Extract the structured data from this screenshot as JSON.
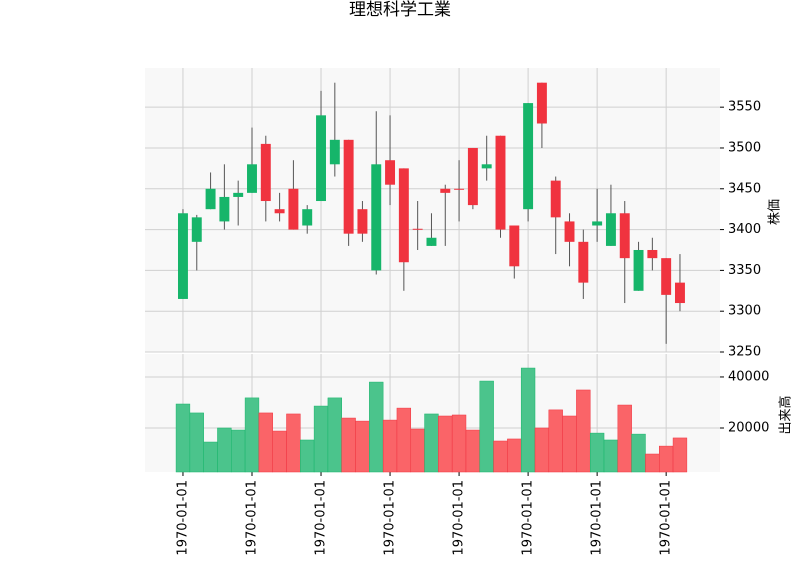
{
  "chart_data": {
    "type": "candlestick",
    "title": "理想科学工業",
    "ylabel": "株価",
    "volume_ylabel": "出来高",
    "x": [
      0,
      1,
      2,
      3,
      4,
      5,
      6,
      7,
      8,
      9,
      10,
      11,
      12,
      13,
      14,
      15,
      16,
      17,
      18,
      19,
      20,
      21,
      22,
      23,
      24,
      25,
      26,
      27,
      28,
      29,
      30,
      31,
      32,
      33,
      34,
      35,
      36
    ],
    "xlim": [
      -2.75,
      38.9
    ],
    "xticks": [
      {
        "value": 0,
        "label": "1970-01-01"
      },
      {
        "value": 5,
        "label": "1970-01-01"
      },
      {
        "value": 10,
        "label": "1970-01-01"
      },
      {
        "value": 15,
        "label": "1970-01-01"
      },
      {
        "value": 20,
        "label": "1970-01-01"
      },
      {
        "value": 25,
        "label": "1970-01-01"
      },
      {
        "value": 30,
        "label": "1970-01-01"
      },
      {
        "value": 35,
        "label": "1970-01-01"
      }
    ],
    "open": [
      3315,
      3385,
      3425,
      3410,
      3440,
      3445,
      3505,
      3425,
      3450,
      3405,
      3435,
      3480,
      3510,
      3425,
      3350,
      3485,
      3475,
      3401,
      3380,
      3450,
      3450,
      3500,
      3475,
      3515,
      3405,
      3425,
      3580,
      3460,
      3410,
      3385,
      3405,
      3380,
      3420,
      3325,
      3375,
      3365,
      3335
    ],
    "high": [
      3425,
      3418,
      3470,
      3480,
      3460,
      3525,
      3515,
      3445,
      3485,
      3430,
      3570,
      3580,
      3510,
      3435,
      3545,
      3540,
      3475,
      3435,
      3420,
      3455,
      3485,
      3500,
      3515,
      3515,
      3405,
      3555,
      3580,
      3465,
      3420,
      3400,
      3450,
      3455,
      3435,
      3385,
      3390,
      3365,
      3370
    ],
    "low": [
      3315,
      3350,
      3425,
      3400,
      3405,
      3445,
      3410,
      3410,
      3400,
      3395,
      3435,
      3465,
      3380,
      3385,
      3345,
      3430,
      3325,
      3375,
      3380,
      3380,
      3410,
      3425,
      3460,
      3390,
      3340,
      3410,
      3500,
      3370,
      3355,
      3315,
      3385,
      3380,
      3310,
      3325,
      3350,
      3260,
      3300
    ],
    "close": [
      3420,
      3415,
      3450,
      3440,
      3445,
      3480,
      3435,
      3420,
      3400,
      3425,
      3540,
      3510,
      3395,
      3395,
      3480,
      3455,
      3360,
      3400,
      3390,
      3445,
      3449,
      3430,
      3480,
      3400,
      3355,
      3555,
      3530,
      3415,
      3385,
      3335,
      3410,
      3420,
      3365,
      3375,
      3365,
      3320,
      3310
    ],
    "volume": [
      29400,
      25900,
      14500,
      20000,
      19200,
      31800,
      25900,
      18800,
      25500,
      15300,
      28600,
      31800,
      23900,
      22700,
      38000,
      23100,
      27800,
      19600,
      25500,
      24700,
      25100,
      19200,
      38400,
      14900,
      15700,
      43500,
      20000,
      27100,
      24700,
      34900,
      18000,
      15300,
      29000,
      17600,
      9800,
      12900,
      16100
    ],
    "ylim": [
      3250,
      3598
    ],
    "yticks": [
      3250,
      3300,
      3350,
      3400,
      3450,
      3500,
      3550
    ],
    "volume_ylim": [
      2750,
      49000
    ],
    "volume_yticks": [
      20000,
      40000
    ],
    "grid": true,
    "up_color": "#16b56a",
    "down_color": "#f0333f",
    "volume_up_color": "#4bc48c",
    "volume_down_color": "#fa6468",
    "wick_color": "#555555"
  }
}
